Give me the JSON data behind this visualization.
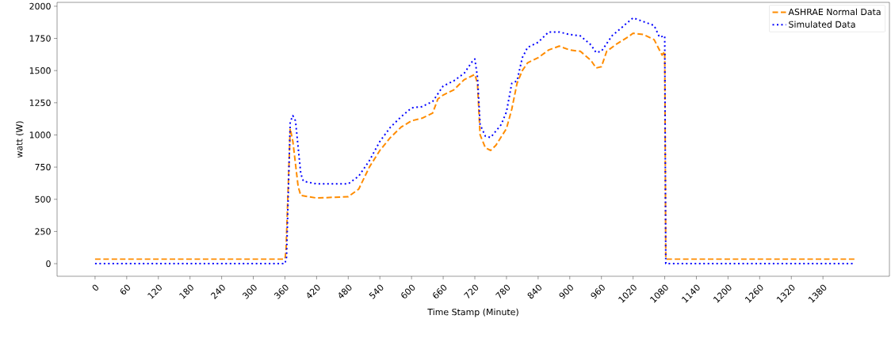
{
  "chart_data": {
    "type": "line",
    "xlabel": "Time Stamp (Minute)",
    "ylabel": "watt (W)",
    "xlim": [
      -72,
      1506
    ],
    "ylim": [
      -98,
      2030
    ],
    "xticks": [
      0,
      60,
      120,
      180,
      240,
      300,
      360,
      420,
      480,
      540,
      600,
      660,
      720,
      780,
      840,
      900,
      960,
      1020,
      1080,
      1140,
      1200,
      1260,
      1320,
      1380
    ],
    "yticks": [
      0,
      250,
      500,
      750,
      1000,
      1250,
      1500,
      1750,
      2000
    ],
    "grid": false,
    "legend": "top right",
    "marker": "none",
    "series": [
      {
        "name": "ASHRAE Normal Data",
        "color": "#ff8c00",
        "line_style": "dashed",
        "x": [
          0,
          360,
          362,
          370,
          375,
          385,
          390,
          420,
          480,
          500,
          520,
          540,
          560,
          580,
          600,
          620,
          640,
          650,
          660,
          680,
          700,
          720,
          725,
          730,
          740,
          750,
          760,
          780,
          790,
          800,
          810,
          820,
          840,
          860,
          880,
          900,
          920,
          940,
          950,
          960,
          970,
          990,
          1010,
          1020,
          1040,
          1060,
          1075,
          1080,
          1082,
          1440
        ],
        "values": [
          35,
          35,
          100,
          1050,
          950,
          600,
          530,
          510,
          520,
          580,
          750,
          880,
          980,
          1060,
          1110,
          1130,
          1170,
          1280,
          1310,
          1350,
          1430,
          1470,
          1400,
          1000,
          900,
          880,
          920,
          1050,
          1200,
          1400,
          1500,
          1560,
          1600,
          1660,
          1690,
          1660,
          1650,
          1580,
          1520,
          1530,
          1650,
          1710,
          1760,
          1790,
          1780,
          1740,
          1620,
          1650,
          35,
          35
        ]
      },
      {
        "name": "Simulated Data",
        "color": "#0000ff",
        "line_style": "dotted",
        "x": [
          0,
          360,
          363,
          370,
          375,
          380,
          390,
          395,
          420,
          480,
          500,
          520,
          540,
          560,
          580,
          600,
          620,
          640,
          660,
          680,
          700,
          715,
          720,
          725,
          730,
          740,
          750,
          770,
          780,
          790,
          800,
          810,
          820,
          840,
          860,
          880,
          900,
          920,
          940,
          950,
          960,
          980,
          1000,
          1020,
          1040,
          1060,
          1070,
          1080,
          1082,
          1440
        ],
        "values": [
          0,
          0,
          50,
          1100,
          1150,
          1110,
          700,
          640,
          620,
          620,
          680,
          800,
          950,
          1060,
          1140,
          1210,
          1220,
          1260,
          1380,
          1420,
          1480,
          1570,
          1590,
          1450,
          1080,
          990,
          980,
          1080,
          1180,
          1400,
          1420,
          1600,
          1680,
          1720,
          1800,
          1800,
          1780,
          1770,
          1700,
          1640,
          1650,
          1770,
          1840,
          1910,
          1880,
          1850,
          1760,
          1770,
          0,
          0
        ]
      }
    ]
  }
}
